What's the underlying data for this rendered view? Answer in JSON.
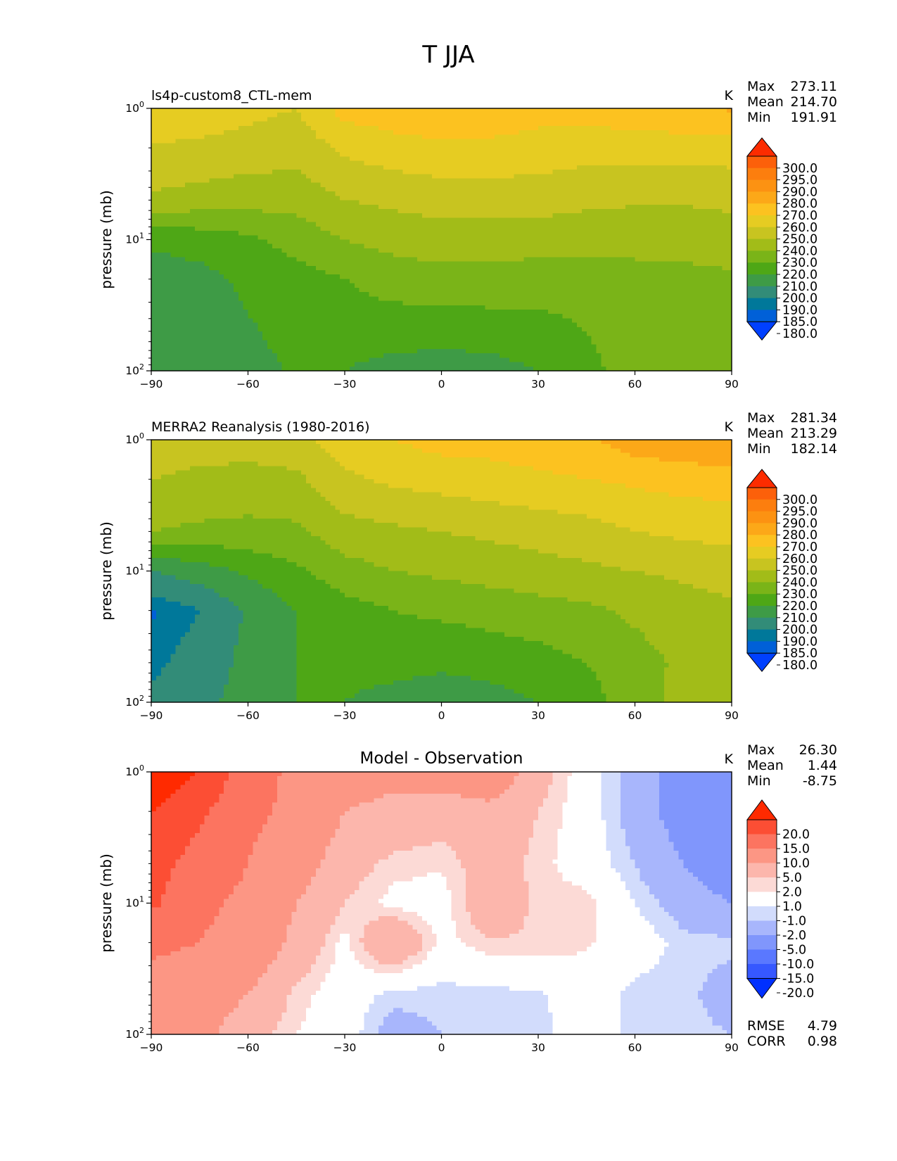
{
  "figure_title": "T JJA",
  "colors": {
    "t_levels": [
      "#0040ff",
      "#0060d8",
      "#00789a",
      "#328c78",
      "#3e9b46",
      "#4ea716",
      "#7ab418",
      "#a2bc18",
      "#c8c420",
      "#e6cc22",
      "#fcc220",
      "#fca818",
      "#fc9212",
      "#fc7e0e",
      "#fc600a",
      "#fc2c00"
    ],
    "d_levels": [
      "#0030ff",
      "#3658ff",
      "#5a78ff",
      "#8096fc",
      "#a8b6fc",
      "#d2dcfc",
      "#ffffff",
      "#fcdad6",
      "#fcb6ac",
      "#fc9684",
      "#fc7460",
      "#fc4e34",
      "#ff2a00"
    ]
  },
  "chart_data": [
    {
      "type": "contourf",
      "panel_title": "ls4p-custom8_CTL-mem",
      "units": "K",
      "stats": {
        "max_label": "Max",
        "max": "273.11",
        "mean_label": "Mean",
        "mean": "214.70",
        "min_label": "Min",
        "min": "191.91"
      },
      "ylabel": "pressure (mb)",
      "xticks": [
        "−90",
        "−60",
        "−30",
        "0",
        "30",
        "60",
        "90"
      ],
      "xlim": [
        -90,
        90
      ],
      "ylim": [
        100,
        1
      ],
      "yscale": "log",
      "yticks": [
        {
          "base": "10",
          "exp": "0"
        },
        {
          "base": "10",
          "exp": "1"
        },
        {
          "base": "10",
          "exp": "2"
        }
      ],
      "colorbar_labels": [
        "300.0",
        "295.0",
        "290.0",
        "280.0",
        "270.0",
        "260.0",
        "250.0",
        "240.0",
        "230.0",
        "220.0",
        "210.0",
        "200.0",
        "190.0",
        "185.0",
        "180.0"
      ],
      "field_lat": [
        -90,
        -75,
        -60,
        -45,
        -30,
        -15,
        0,
        15,
        30,
        45,
        60,
        75,
        90
      ],
      "field_pressure": [
        1,
        2,
        5,
        10,
        20,
        50,
        100
      ],
      "field_values": [
        [
          259,
          256,
          253,
          250,
          264,
          266,
          268,
          266,
          264,
          264,
          268,
          270,
          271
        ],
        [
          249,
          248,
          246,
          244,
          252,
          256,
          258,
          258,
          256,
          254,
          254,
          254,
          255
        ],
        [
          238,
          236,
          234,
          234,
          240,
          242,
          244,
          244,
          244,
          242,
          241,
          241,
          242
        ],
        [
          212,
          214,
          218,
          224,
          230,
          234,
          236,
          236,
          235,
          234,
          234,
          234,
          236
        ],
        [
          205,
          207,
          212,
          216,
          220,
          224,
          226,
          226,
          224,
          224,
          226,
          227,
          228
        ],
        [
          201,
          204,
          209,
          213,
          215,
          215,
          214,
          215,
          217,
          220,
          226,
          227,
          228
        ],
        [
          200,
          203,
          207,
          211,
          210,
          206,
          205,
          206,
          210,
          217,
          225,
          226,
          227
        ]
      ]
    },
    {
      "type": "contourf",
      "panel_title": "MERRA2 Reanalysis (1980-2016)",
      "units": "K",
      "stats": {
        "max_label": "Max",
        "max": "281.34",
        "mean_label": "Mean",
        "mean": "213.29",
        "min_label": "Min",
        "min": "182.14"
      },
      "ylabel": "pressure (mb)",
      "xticks": [
        "−90",
        "−60",
        "−30",
        "0",
        "30",
        "60",
        "90"
      ],
      "xlim": [
        -90,
        90
      ],
      "ylim": [
        100,
        1
      ],
      "yscale": "log",
      "yticks": [
        {
          "base": "10",
          "exp": "0"
        },
        {
          "base": "10",
          "exp": "1"
        },
        {
          "base": "10",
          "exp": "2"
        }
      ],
      "colorbar_labels": [
        "300.0",
        "295.0",
        "290.0",
        "280.0",
        "270.0",
        "260.0",
        "250.0",
        "240.0",
        "230.0",
        "220.0",
        "210.0",
        "200.0",
        "190.0",
        "185.0",
        "180.0"
      ],
      "field_lat": [
        -90,
        -75,
        -60,
        -45,
        -30,
        -15,
        0,
        15,
        30,
        45,
        60,
        75,
        90
      ],
      "field_pressure": [
        1,
        2,
        5,
        10,
        20,
        50,
        100
      ],
      "field_values": [
        [
          246,
          244,
          244,
          246,
          256,
          260,
          264,
          264,
          266,
          268,
          276,
          278,
          281
        ],
        [
          240,
          238,
          237,
          238,
          248,
          252,
          254,
          256,
          258,
          260,
          262,
          264,
          265
        ],
        [
          230,
          228,
          227,
          228,
          236,
          238,
          240,
          242,
          244,
          246,
          250,
          252,
          254
        ],
        [
          200,
          205,
          212,
          218,
          226,
          230,
          232,
          234,
          236,
          238,
          240,
          242,
          244
        ],
        [
          184,
          190,
          201,
          210,
          216,
          220,
          222,
          224,
          226,
          228,
          232,
          236,
          238
        ],
        [
          188,
          194,
          203,
          210,
          213,
          214,
          212,
          214,
          216,
          220,
          226,
          232,
          233
        ],
        [
          192,
          197,
          204,
          210,
          210,
          206,
          204,
          206,
          210,
          216,
          226,
          233,
          234
        ]
      ]
    },
    {
      "type": "contourf",
      "panel_title": "Model - Observation",
      "units": "K",
      "stats": {
        "max_label": "Max",
        "max": "26.30",
        "mean_label": "Mean",
        "mean": "1.44",
        "min_label": "Min",
        "min": "-8.75"
      },
      "ylabel": "pressure (mb)",
      "xticks": [
        "−90",
        "−60",
        "−30",
        "0",
        "30",
        "60",
        "90"
      ],
      "xlim": [
        -90,
        90
      ],
      "ylim": [
        100,
        1
      ],
      "yscale": "log",
      "yticks": [
        {
          "base": "10",
          "exp": "0"
        },
        {
          "base": "10",
          "exp": "1"
        },
        {
          "base": "10",
          "exp": "2"
        }
      ],
      "colorbar_labels": [
        "20.0",
        "15.0",
        "10.0",
        "5.0",
        "2.0",
        "1.0",
        "-1.0",
        "-2.0",
        "-5.0",
        "-10.0",
        "-15.0",
        "-20.0"
      ],
      "error_stats": {
        "rmse_label": "RMSE",
        "rmse": "4.79",
        "corr_label": "CORR",
        "corr": "0.98"
      },
      "field_lat": [
        -90,
        -75,
        -60,
        -45,
        -30,
        -15,
        0,
        15,
        30,
        45,
        60,
        75,
        90
      ],
      "field_pressure": [
        1,
        2,
        5,
        10,
        20,
        50,
        100
      ],
      "field_values": [
        [
          24,
          20,
          12,
          9,
          7,
          6,
          7,
          8,
          3,
          0,
          -3,
          -7,
          -9
        ],
        [
          20,
          16,
          11,
          9,
          5,
          4,
          3,
          4,
          2,
          0,
          -3,
          -7,
          -9
        ],
        [
          17,
          13,
          10,
          7,
          3,
          1.5,
          1.2,
          3,
          1.5,
          0,
          -2,
          -5,
          -8
        ],
        [
          16,
          11,
          9,
          5,
          2,
          0.5,
          0.2,
          4,
          1.5,
          1.5,
          -1,
          -3,
          -5
        ],
        [
          11,
          10,
          8,
          4,
          0.5,
          5,
          0.5,
          1.8,
          1.8,
          1.2,
          0,
          -1.5,
          -1.5
        ],
        [
          8,
          7,
          5,
          1.5,
          0,
          -1.5,
          -1.5,
          -1.5,
          -1.2,
          0,
          -1.5,
          -1.5,
          -3
        ],
        [
          6,
          6,
          3,
          1,
          0,
          -3,
          -2,
          -1.5,
          -1.5,
          0,
          -1.5,
          -1.5,
          -2
        ]
      ]
    }
  ]
}
